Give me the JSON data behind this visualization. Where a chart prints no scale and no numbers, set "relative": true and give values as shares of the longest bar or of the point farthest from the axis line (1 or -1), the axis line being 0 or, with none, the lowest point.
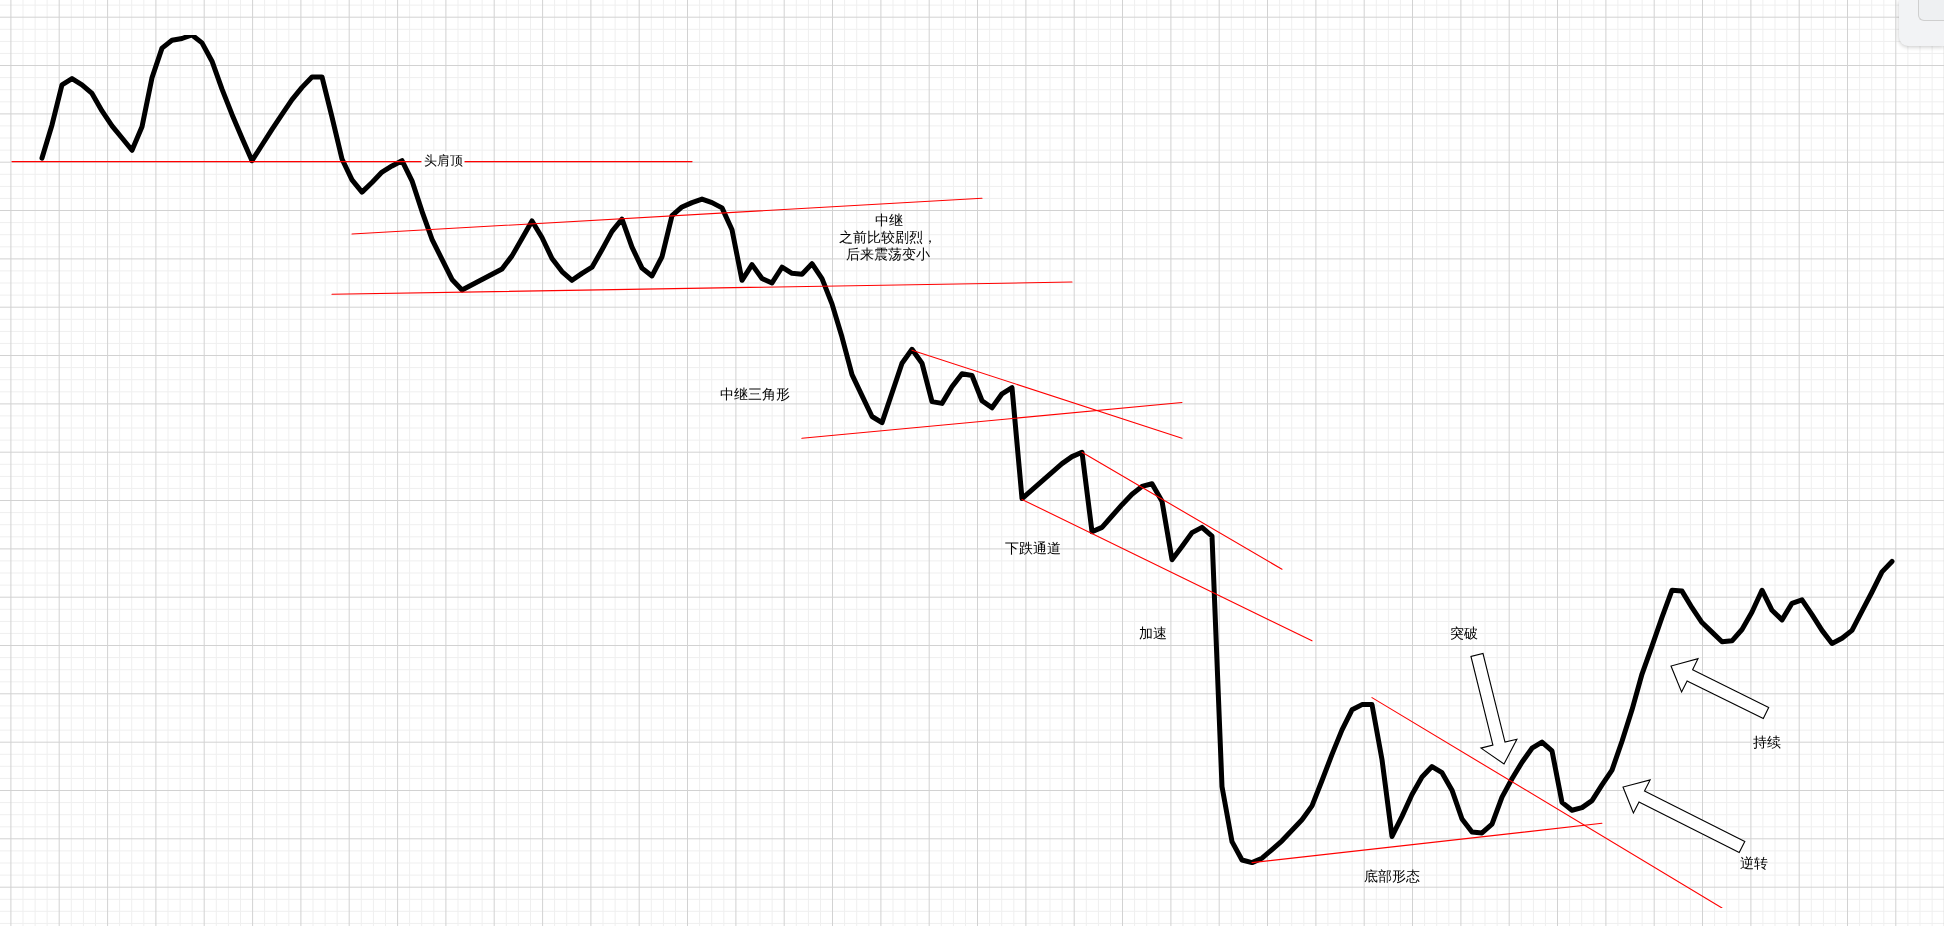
{
  "chart_data": {
    "type": "line",
    "relative": true,
    "grid": true,
    "categories": [
      null,
      null,
      null,
      null,
      null,
      null,
      null,
      null,
      null,
      null,
      null,
      null,
      null,
      null,
      null,
      null,
      null,
      null,
      null,
      null,
      null,
      null,
      null,
      null,
      null,
      null,
      null,
      null,
      null,
      null,
      null,
      null,
      null,
      null,
      null,
      null,
      null,
      null,
      null,
      null,
      null,
      null,
      null,
      null,
      null,
      null,
      null,
      null,
      null,
      null,
      null,
      null,
      null,
      null,
      null,
      null,
      null,
      null,
      null,
      null,
      null,
      null,
      null,
      null,
      null,
      null,
      null,
      null,
      null,
      null,
      null,
      null,
      null,
      null,
      null,
      null,
      null,
      null,
      null,
      null,
      null,
      null,
      null,
      null,
      null,
      null,
      null,
      null,
      null,
      null,
      null,
      null,
      null,
      null,
      null,
      null,
      null,
      null,
      null,
      null,
      null,
      null,
      null,
      null,
      null,
      null,
      null,
      null,
      null,
      null,
      null,
      null,
      null,
      null,
      null,
      null,
      null,
      null,
      null,
      null,
      null,
      null,
      null,
      null,
      null,
      null,
      null,
      null,
      null,
      null,
      null,
      null,
      null,
      null,
      null,
      null,
      null,
      null,
      null,
      null,
      null,
      null,
      null,
      null,
      null,
      null,
      null,
      null,
      null,
      null,
      null,
      null,
      null,
      null,
      null,
      null,
      null,
      null,
      null,
      null,
      null,
      null,
      null,
      null,
      null,
      null,
      null,
      null,
      null,
      null,
      null,
      null,
      null,
      null,
      null,
      null,
      null,
      null,
      null,
      null,
      null,
      null,
      null,
      null,
      null,
      null,
      null,
      null,
      null
    ],
    "series": [
      {
        "color": "#000000",
        "values": [
          null,
          null,
          null,
          0.859,
          0.897,
          0.943,
          0.95,
          0.943,
          0.933,
          0.913,
          0.896,
          0.882,
          0.868,
          0.895,
          0.951,
          0.985,
          0.994,
          0.996,
          1,
          0.991,
          0.97,
          0.938,
          0.909,
          0.882,
          0.856,
          0.874,
          0.892,
          0.909,
          0.926,
          0.94,
          0.952,
          0.952,
          0.906,
          0.858,
          0.834,
          0.82,
          0.831,
          0.843,
          0.85,
          0.856,
          0.833,
          0.798,
          0.766,
          0.743,
          0.72,
          0.708,
          0.714,
          0.72,
          0.726,
          0.732,
          0.747,
          0.767,
          0.787,
          0.768,
          0.744,
          0.729,
          0.719,
          0.727,
          0.734,
          0.754,
          0.775,
          0.789,
          0.757,
          0.733,
          0.724,
          0.746,
          0.793,
          0.803,
          0.808,
          0.812,
          0.808,
          0.802,
          0.777,
          0.719,
          0.737,
          0.721,
          0.716,
          0.734,
          0.727,
          0.726,
          0.738,
          0.721,
          0.692,
          0.654,
          0.611,
          0.587,
          0.563,
          0.556,
          0.59,
          0.624,
          0.64,
          0.624,
          0.58,
          0.578,
          0.597,
          0.612,
          0.61,
          0.581,
          0.573,
          0.589,
          0.596,
          0.469,
          0.479,
          0.489,
          0.499,
          0.509,
          0.517,
          0.522,
          0.431,
          0.436,
          0.449,
          0.462,
          0.474,
          0.483,
          0.486,
          0.466,
          0.399,
          0.414,
          0.43,
          0.436,
          0.426,
          0.139,
          0.076,
          0.055,
          0.052,
          0.057,
          0.067,
          0.077,
          0.089,
          0.101,
          0.117,
          0.146,
          0.176,
          0.204,
          0.227,
          0.233,
          0.233,
          0.17,
          0.082,
          0.105,
          0.13,
          0.15,
          0.162,
          0.155,
          0.135,
          0.102,
          0.087,
          0.086,
          0.096,
          0.127,
          0.148,
          0.167,
          0.183,
          0.19,
          0.18,
          0.121,
          0.112,
          0.115,
          0.123,
          0.141,
          0.158,
          0.191,
          0.227,
          0.268,
          0.3,
          0.333,
          0.364,
          0.363,
          0.344,
          0.327,
          0.316,
          0.305,
          0.306,
          0.319,
          0.339,
          0.364,
          0.341,
          0.33,
          0.349,
          0.353,
          0.336,
          0.318,
          0.303,
          0.309,
          0.318,
          0.34,
          0.362,
          0.385,
          0.397
        ]
      },
      {
        "color": "#ff0000",
        "values": [
          0.855,
          null,
          null,
          null,
          null,
          null,
          null,
          null,
          null,
          null,
          null,
          null,
          null,
          null,
          null,
          null,
          null,
          null,
          null,
          null,
          null,
          null,
          null,
          null,
          null,
          null,
          null,
          null,
          null,
          null,
          null,
          null,
          null,
          null,
          null,
          null,
          null,
          null,
          null,
          null,
          null,
          null,
          null,
          null,
          null,
          null,
          null,
          null,
          null,
          null,
          null,
          null,
          null,
          null,
          null,
          null,
          null,
          null,
          null,
          null,
          null,
          null,
          null,
          null,
          null,
          null,
          null,
          null,
          0.855,
          null,
          null,
          null,
          null,
          null,
          null,
          null,
          null,
          null,
          null,
          null,
          null,
          null,
          null,
          null,
          null,
          null,
          null,
          null,
          null,
          null,
          null,
          null,
          null,
          null,
          null,
          null,
          null,
          null,
          null,
          null,
          null,
          null,
          null,
          null,
          null,
          null,
          null,
          null,
          null,
          null,
          null,
          null,
          null,
          null,
          null,
          null,
          null,
          null,
          null,
          null,
          null,
          null,
          null,
          null,
          null,
          null,
          null,
          null,
          null,
          null,
          null,
          null,
          null,
          null,
          null,
          null,
          null,
          null,
          null,
          null,
          null,
          null,
          null,
          null,
          null,
          null,
          null,
          null,
          null,
          null,
          null,
          null,
          null,
          null,
          null,
          null,
          null,
          null,
          null,
          null,
          null,
          null,
          null,
          null,
          null,
          null,
          null,
          null,
          null,
          null,
          null,
          null,
          null,
          null,
          null,
          null,
          null,
          null,
          null,
          null,
          null,
          null,
          null,
          null,
          null,
          null,
          null,
          null,
          null
        ]
      },
      {
        "color": "#ff0000",
        "values": [
          null,
          null,
          null,
          null,
          null,
          null,
          null,
          null,
          null,
          null,
          null,
          null,
          null,
          null,
          null,
          null,
          null,
          null,
          null,
          null,
          null,
          null,
          null,
          null,
          null,
          null,
          null,
          null,
          null,
          null,
          null,
          null,
          null,
          null,
          0.772,
          null,
          null,
          null,
          null,
          null,
          null,
          null,
          null,
          null,
          null,
          null,
          null,
          null,
          null,
          null,
          null,
          null,
          null,
          null,
          null,
          null,
          null,
          null,
          null,
          null,
          null,
          null,
          null,
          null,
          null,
          null,
          null,
          null,
          null,
          null,
          null,
          null,
          null,
          null,
          null,
          null,
          null,
          null,
          null,
          null,
          null,
          null,
          null,
          null,
          null,
          null,
          null,
          null,
          null,
          null,
          null,
          null,
          null,
          null,
          null,
          null,
          null,
          0.813,
          null,
          null,
          null,
          null,
          null,
          null,
          null,
          null,
          null,
          null,
          null,
          null,
          null,
          null,
          null,
          null,
          null,
          null,
          null,
          null,
          null,
          null,
          null,
          null,
          null,
          null,
          null,
          null,
          null,
          null,
          null,
          null,
          null,
          null,
          null,
          null,
          null,
          null,
          null,
          null,
          null,
          null,
          null,
          null,
          null,
          null,
          null,
          null,
          null,
          null,
          null,
          null,
          null,
          null,
          null,
          null,
          null,
          null,
          null,
          null,
          null,
          null,
          null,
          null,
          null,
          null,
          null,
          null,
          null,
          null,
          null,
          null,
          null,
          null,
          null,
          null,
          null,
          null,
          null,
          null,
          null,
          null,
          null,
          null,
          null,
          null,
          null,
          null,
          null,
          null,
          null
        ]
      },
      {
        "color": "#ff0000",
        "values": [
          null,
          null,
          null,
          null,
          null,
          null,
          null,
          null,
          null,
          null,
          null,
          null,
          null,
          null,
          null,
          null,
          null,
          null,
          null,
          null,
          null,
          null,
          null,
          null,
          null,
          null,
          null,
          null,
          null,
          null,
          null,
          null,
          0.703,
          null,
          null,
          null,
          null,
          null,
          null,
          null,
          null,
          null,
          null,
          null,
          null,
          null,
          null,
          null,
          null,
          null,
          null,
          null,
          null,
          null,
          null,
          null,
          null,
          null,
          null,
          null,
          null,
          null,
          null,
          null,
          null,
          null,
          null,
          null,
          null,
          null,
          null,
          null,
          null,
          null,
          null,
          null,
          null,
          null,
          null,
          null,
          null,
          null,
          null,
          null,
          null,
          null,
          null,
          null,
          null,
          null,
          null,
          null,
          null,
          null,
          null,
          null,
          null,
          null,
          null,
          null,
          null,
          null,
          null,
          null,
          null,
          null,
          0.717,
          null,
          null,
          null,
          null,
          null,
          null,
          null,
          null,
          null,
          null,
          null,
          null,
          null,
          null,
          null,
          null,
          null,
          null,
          null,
          null,
          null,
          null,
          null,
          null,
          null,
          null,
          null,
          null,
          null,
          null,
          null,
          null,
          null,
          null,
          null,
          null,
          null,
          null,
          null,
          null,
          null,
          null,
          null,
          null,
          null,
          null,
          null,
          null,
          null,
          null,
          null,
          null,
          null,
          null,
          null,
          null,
          null,
          null,
          null,
          null,
          null,
          null,
          null,
          null,
          null,
          null,
          null,
          null,
          null,
          null,
          null,
          null,
          null,
          null,
          null,
          null,
          null,
          null,
          null,
          null,
          null,
          null
        ]
      },
      {
        "color": "#ff0000",
        "values": [
          null,
          null,
          null,
          null,
          null,
          null,
          null,
          null,
          null,
          null,
          null,
          null,
          null,
          null,
          null,
          null,
          null,
          null,
          null,
          null,
          null,
          null,
          null,
          null,
          null,
          null,
          null,
          null,
          null,
          null,
          null,
          null,
          null,
          null,
          null,
          null,
          null,
          null,
          null,
          null,
          null,
          null,
          null,
          null,
          null,
          null,
          null,
          null,
          null,
          null,
          null,
          null,
          null,
          null,
          null,
          null,
          null,
          null,
          null,
          null,
          null,
          null,
          null,
          null,
          null,
          null,
          null,
          null,
          null,
          null,
          null,
          null,
          null,
          null,
          null,
          null,
          null,
          null,
          null,
          null,
          null,
          null,
          null,
          null,
          null,
          null,
          null,
          null,
          null,
          null,
          0.639,
          null,
          null,
          null,
          null,
          null,
          null,
          null,
          null,
          null,
          null,
          null,
          null,
          null,
          null,
          null,
          null,
          null,
          null,
          null,
          null,
          null,
          null,
          null,
          null,
          null,
          null,
          0.538,
          null,
          null,
          null,
          null,
          null,
          null,
          null,
          null,
          null,
          null,
          null,
          null,
          null,
          null,
          null,
          null,
          null,
          null,
          null,
          null,
          null,
          null,
          null,
          null,
          null,
          null,
          null,
          null,
          null,
          null,
          null,
          null,
          null,
          null,
          null,
          null,
          null,
          null,
          null,
          null,
          null,
          null,
          null,
          null,
          null,
          null,
          null,
          null,
          null,
          null,
          null,
          null,
          null,
          null,
          null,
          null,
          null,
          null,
          null,
          null,
          null,
          null,
          null,
          null,
          null,
          null,
          null,
          null,
          null,
          null,
          null
        ]
      },
      {
        "color": "#ff0000",
        "values": [
          null,
          null,
          null,
          null,
          null,
          null,
          null,
          null,
          null,
          null,
          null,
          null,
          null,
          null,
          null,
          null,
          null,
          null,
          null,
          null,
          null,
          null,
          null,
          null,
          null,
          null,
          null,
          null,
          null,
          null,
          null,
          null,
          null,
          null,
          null,
          null,
          null,
          null,
          null,
          null,
          null,
          null,
          null,
          null,
          null,
          null,
          null,
          null,
          null,
          null,
          null,
          null,
          null,
          null,
          null,
          null,
          null,
          null,
          null,
          null,
          null,
          null,
          null,
          null,
          null,
          null,
          null,
          null,
          null,
          null,
          null,
          null,
          null,
          null,
          null,
          null,
          null,
          null,
          null,
          0.538,
          null,
          null,
          null,
          null,
          null,
          null,
          null,
          null,
          null,
          null,
          null,
          null,
          null,
          null,
          null,
          null,
          null,
          null,
          null,
          null,
          null,
          null,
          null,
          null,
          null,
          null,
          null,
          null,
          null,
          null,
          null,
          null,
          null,
          null,
          null,
          null,
          null,
          0.579,
          null,
          null,
          null,
          null,
          null,
          null,
          null,
          null,
          null,
          null,
          null,
          null,
          null,
          null,
          null,
          null,
          null,
          null,
          null,
          null,
          null,
          null,
          null,
          null,
          null,
          null,
          null,
          null,
          null,
          null,
          null,
          null,
          null,
          null,
          null,
          null,
          null,
          null,
          null,
          null,
          null,
          null,
          null,
          null,
          null,
          null,
          null,
          null,
          null,
          null,
          null,
          null,
          null,
          null,
          null,
          null,
          null,
          null,
          null,
          null,
          null,
          null,
          null,
          null,
          null,
          null,
          null,
          null,
          null,
          null,
          null
        ]
      },
      {
        "color": "#ff0000",
        "values": [
          null,
          null,
          null,
          null,
          null,
          null,
          null,
          null,
          null,
          null,
          null,
          null,
          null,
          null,
          null,
          null,
          null,
          null,
          null,
          null,
          null,
          null,
          null,
          null,
          null,
          null,
          null,
          null,
          null,
          null,
          null,
          null,
          null,
          null,
          null,
          null,
          null,
          null,
          null,
          null,
          null,
          null,
          null,
          null,
          null,
          null,
          null,
          null,
          null,
          null,
          null,
          null,
          null,
          null,
          null,
          null,
          null,
          null,
          null,
          null,
          null,
          null,
          null,
          null,
          null,
          null,
          null,
          null,
          null,
          null,
          null,
          null,
          null,
          null,
          null,
          null,
          null,
          null,
          null,
          null,
          null,
          null,
          null,
          null,
          null,
          null,
          null,
          null,
          null,
          null,
          null,
          null,
          null,
          null,
          null,
          null,
          null,
          null,
          null,
          null,
          null,
          null,
          null,
          null,
          null,
          null,
          null,
          0.522,
          null,
          null,
          null,
          null,
          null,
          null,
          null,
          null,
          null,
          null,
          null,
          null,
          null,
          null,
          null,
          null,
          null,
          null,
          null,
          0.388,
          null,
          null,
          null,
          null,
          null,
          null,
          null,
          null,
          null,
          null,
          null,
          null,
          null,
          null,
          null,
          null,
          null,
          null,
          null,
          null,
          null,
          null,
          null,
          null,
          null,
          null,
          null,
          null,
          null,
          null,
          null,
          null,
          null,
          null,
          null,
          null,
          null,
          null,
          null,
          null,
          null,
          null,
          null,
          null,
          null,
          null,
          null,
          null,
          null,
          null,
          null,
          null,
          null,
          null,
          null,
          null,
          null,
          null,
          null,
          null,
          null
        ]
      },
      {
        "color": "#ff0000",
        "values": [
          null,
          null,
          null,
          null,
          null,
          null,
          null,
          null,
          null,
          null,
          null,
          null,
          null,
          null,
          null,
          null,
          null,
          null,
          null,
          null,
          null,
          null,
          null,
          null,
          null,
          null,
          null,
          null,
          null,
          null,
          null,
          null,
          null,
          null,
          null,
          null,
          null,
          null,
          null,
          null,
          null,
          null,
          null,
          null,
          null,
          null,
          null,
          null,
          null,
          null,
          null,
          null,
          null,
          null,
          null,
          null,
          null,
          null,
          null,
          null,
          null,
          null,
          null,
          null,
          null,
          null,
          null,
          null,
          null,
          null,
          null,
          null,
          null,
          null,
          null,
          null,
          null,
          null,
          null,
          null,
          null,
          null,
          null,
          null,
          null,
          null,
          null,
          null,
          null,
          null,
          null,
          null,
          null,
          null,
          null,
          null,
          null,
          null,
          null,
          null,
          null,
          0.468,
          null,
          null,
          null,
          null,
          null,
          null,
          null,
          null,
          null,
          null,
          null,
          null,
          null,
          null,
          null,
          null,
          null,
          null,
          null,
          null,
          null,
          null,
          null,
          null,
          null,
          null,
          null,
          null,
          0.306,
          null,
          null,
          null,
          null,
          null,
          null,
          null,
          null,
          null,
          null,
          null,
          null,
          null,
          null,
          null,
          null,
          null,
          null,
          null,
          null,
          null,
          null,
          null,
          null,
          null,
          null,
          null,
          null,
          null,
          null,
          null,
          null,
          null,
          null,
          null,
          null,
          null,
          null,
          null,
          null,
          null,
          null,
          null,
          null,
          null,
          null,
          null,
          null,
          null,
          null,
          null,
          null,
          null,
          null,
          null,
          null,
          null,
          null
        ]
      },
      {
        "color": "#ff0000",
        "values": [
          null,
          null,
          null,
          null,
          null,
          null,
          null,
          null,
          null,
          null,
          null,
          null,
          null,
          null,
          null,
          null,
          null,
          null,
          null,
          null,
          null,
          null,
          null,
          null,
          null,
          null,
          null,
          null,
          null,
          null,
          null,
          null,
          null,
          null,
          null,
          null,
          null,
          null,
          null,
          null,
          null,
          null,
          null,
          null,
          null,
          null,
          null,
          null,
          null,
          null,
          null,
          null,
          null,
          null,
          null,
          null,
          null,
          null,
          null,
          null,
          null,
          null,
          null,
          null,
          null,
          null,
          null,
          null,
          null,
          null,
          null,
          null,
          null,
          null,
          null,
          null,
          null,
          null,
          null,
          null,
          null,
          null,
          null,
          null,
          null,
          null,
          null,
          null,
          null,
          null,
          null,
          null,
          null,
          null,
          null,
          null,
          null,
          null,
          null,
          null,
          null,
          null,
          null,
          null,
          null,
          null,
          null,
          null,
          null,
          null,
          null,
          null,
          null,
          null,
          null,
          null,
          null,
          null,
          null,
          null,
          null,
          null,
          null,
          null,
          null,
          null,
          null,
          null,
          null,
          null,
          null,
          null,
          null,
          null,
          null,
          null,
          0.241,
          null,
          null,
          null,
          null,
          null,
          null,
          null,
          null,
          null,
          null,
          null,
          null,
          null,
          null,
          null,
          null,
          null,
          null,
          null,
          null,
          null,
          null,
          null,
          null,
          null,
          null,
          null,
          null,
          null,
          null,
          null,
          null,
          null,
          null,
          0,
          null,
          null,
          null,
          null,
          null,
          null,
          null,
          null,
          null,
          null,
          null,
          null,
          null,
          null,
          null,
          null,
          null
        ]
      },
      {
        "color": "#ff0000",
        "values": [
          null,
          null,
          null,
          null,
          null,
          null,
          null,
          null,
          null,
          null,
          null,
          null,
          null,
          null,
          null,
          null,
          null,
          null,
          null,
          null,
          null,
          null,
          null,
          null,
          null,
          null,
          null,
          null,
          null,
          null,
          null,
          null,
          null,
          null,
          null,
          null,
          null,
          null,
          null,
          null,
          null,
          null,
          null,
          null,
          null,
          null,
          null,
          null,
          null,
          null,
          null,
          null,
          null,
          null,
          null,
          null,
          null,
          null,
          null,
          null,
          null,
          null,
          null,
          null,
          null,
          null,
          null,
          null,
          null,
          null,
          null,
          null,
          null,
          null,
          null,
          null,
          null,
          null,
          null,
          null,
          null,
          null,
          null,
          null,
          null,
          null,
          null,
          null,
          null,
          null,
          null,
          null,
          null,
          null,
          null,
          null,
          null,
          null,
          null,
          null,
          null,
          null,
          null,
          null,
          null,
          null,
          null,
          null,
          null,
          null,
          null,
          null,
          null,
          null,
          null,
          null,
          null,
          null,
          null,
          null,
          null,
          null,
          null,
          null,
          0.052,
          null,
          null,
          null,
          null,
          null,
          null,
          null,
          null,
          null,
          null,
          null,
          null,
          null,
          null,
          null,
          null,
          null,
          null,
          null,
          null,
          null,
          null,
          null,
          null,
          null,
          null,
          null,
          null,
          null,
          null,
          null,
          null,
          null,
          null,
          0.097,
          null,
          null,
          null,
          null,
          null,
          null,
          null,
          null,
          null,
          null,
          null,
          null,
          null,
          null,
          null,
          null,
          null,
          null,
          null,
          null,
          null,
          null,
          null,
          null,
          null,
          null,
          null,
          null,
          null
        ]
      }
    ],
    "annotations": [
      "头肩顶",
      "中继",
      "之前比较剧烈，后来震荡变小",
      "中继三角形",
      "下跌通道",
      "加速",
      "突破",
      "底部形态",
      "持续",
      "逆转"
    ]
  }
}
